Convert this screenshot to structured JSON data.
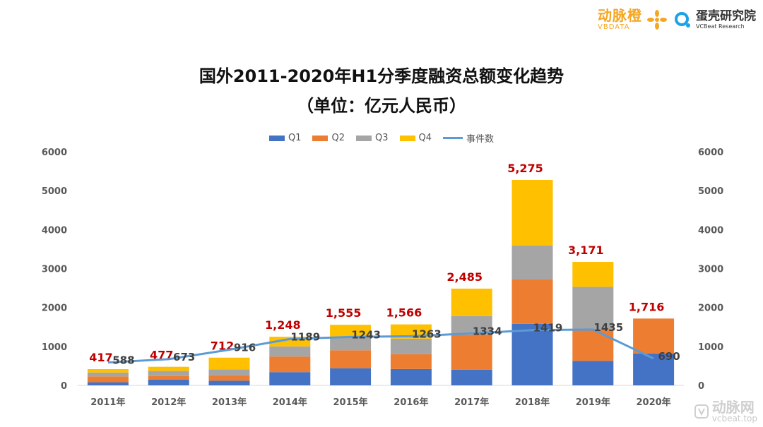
{
  "header": {
    "brand1_name": "动脉橙",
    "brand1_sub": "VBDATA",
    "brand2_name": "蛋壳研究院",
    "brand2_sub": "VCBeat Research"
  },
  "watermark": {
    "name": "动脉网",
    "url": "vcbeat.top"
  },
  "colors": {
    "q1": "#4472c4",
    "q2": "#ed7d31",
    "q3": "#a5a5a5",
    "q4": "#ffc000",
    "line": "#5b9bd5",
    "total_label": "#c00000"
  },
  "chart_data": {
    "type": "bar",
    "title": "国外2011-2020年H1分季度融资总额变化趋势",
    "subtitle": "（单位：亿元人民币）",
    "categories": [
      "2011年",
      "2012年",
      "2013年",
      "2014年",
      "2015年",
      "2016年",
      "2017年",
      "2018年",
      "2019年",
      "2020年"
    ],
    "stacked": true,
    "series": [
      {
        "name": "Q1",
        "values": [
          80,
          150,
          120,
          340,
          440,
          420,
          400,
          1580,
          630,
          820
        ]
      },
      {
        "name": "Q2",
        "values": [
          150,
          90,
          140,
          400,
          460,
          380,
          900,
          1140,
          800,
          896
        ]
      },
      {
        "name": "Q3",
        "values": [
          100,
          130,
          150,
          260,
          350,
          400,
          480,
          870,
          1100,
          0
        ]
      },
      {
        "name": "Q4",
        "values": [
          87,
          107,
          302,
          248,
          305,
          366,
          705,
          1685,
          641,
          0
        ]
      }
    ],
    "totals": [
      417,
      477,
      712,
      1248,
      1555,
      1566,
      2485,
      5275,
      3171,
      1716
    ],
    "total_labels": [
      "417",
      "477",
      "712",
      "1,248",
      "1,555",
      "1,566",
      "2,485",
      "5,275",
      "3,171",
      "1,716"
    ],
    "line_series": {
      "name": "事件数",
      "values": [
        588,
        673,
        916,
        1189,
        1243,
        1263,
        1334,
        1419,
        1435,
        690
      ],
      "axis": "right"
    },
    "ylim": [
      0,
      6000
    ],
    "y2lim": [
      0,
      6000
    ],
    "yticks": [
      0,
      1000,
      2000,
      3000,
      4000,
      5000,
      6000
    ],
    "legend": [
      "Q1",
      "Q2",
      "Q3",
      "Q4",
      "事件数"
    ],
    "legend_position": "top-center",
    "grid": false
  }
}
